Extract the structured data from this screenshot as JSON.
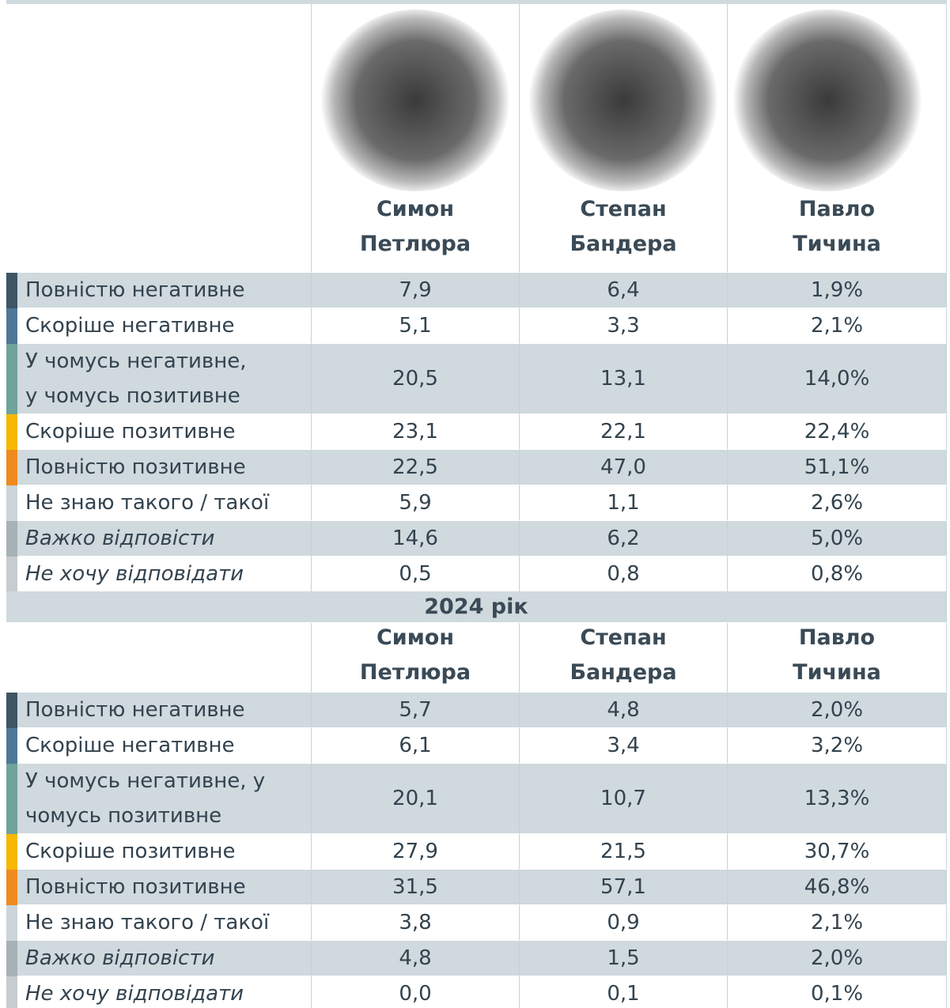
{
  "sections": [
    {
      "columns": [
        [
          "Симон",
          "Петлюра"
        ],
        [
          "Степан",
          "Бандера"
        ],
        [
          "Павло",
          "Тичина"
        ]
      ],
      "rows": [
        {
          "label": [
            "Повністю негативне"
          ],
          "color": "#3d5565",
          "values": [
            "7,9",
            "6,4",
            "1,9%"
          ]
        },
        {
          "label": [
            "Скоріше негативне"
          ],
          "color": "#4e7898",
          "values": [
            "5,1",
            "3,3",
            "2,1%"
          ]
        },
        {
          "label": [
            "У чомусь негативне,",
            "у чомусь позитивне"
          ],
          "color": "#6fa39c",
          "values": [
            "20,5",
            "13,1",
            "14,0%"
          ]
        },
        {
          "label": [
            "Скоріше позитивне"
          ],
          "color": "#f6b800",
          "values": [
            "23,1",
            "22,1",
            "22,4%"
          ]
        },
        {
          "label": [
            "Повністю позитивне"
          ],
          "color": "#f08a1c",
          "values": [
            "22,5",
            "47,0",
            "51,1%"
          ]
        },
        {
          "label": [
            "Не знаю такого / такої"
          ],
          "color": "#cbd5db",
          "values": [
            "5,9",
            "1,1",
            "2,6%"
          ]
        },
        {
          "label": [
            "Важко відповісти"
          ],
          "color": "#a7b2b6",
          "italic": true,
          "values": [
            "14,6",
            "6,2",
            "5,0%"
          ]
        },
        {
          "label": [
            "Не хочу відповідати"
          ],
          "color": "#c6ccd0",
          "italic": true,
          "values": [
            "0,5",
            "0,8",
            "0,8%"
          ]
        }
      ]
    },
    {
      "title": "2024 рік",
      "columns": [
        [
          "Симон",
          "Петлюра"
        ],
        [
          "Степан",
          "Бандера"
        ],
        [
          "Павло",
          "Тичина"
        ]
      ],
      "rows": [
        {
          "label": [
            "Повністю негативне"
          ],
          "color": "#3d5565",
          "values": [
            "5,7",
            "4,8",
            "2,0%"
          ]
        },
        {
          "label": [
            "Скоріше негативне"
          ],
          "color": "#4e7898",
          "values": [
            "6,1",
            "3,4",
            "3,2%"
          ]
        },
        {
          "label": [
            "У чомусь негативне, у",
            "чомусь позитивне"
          ],
          "color": "#6fa39c",
          "values": [
            "20,1",
            "10,7",
            "13,3%"
          ]
        },
        {
          "label": [
            "Скоріше позитивне"
          ],
          "color": "#f6b800",
          "values": [
            "27,9",
            "21,5",
            "30,7%"
          ]
        },
        {
          "label": [
            "Повністю позитивне"
          ],
          "color": "#f08a1c",
          "values": [
            "31,5",
            "57,1",
            "46,8%"
          ]
        },
        {
          "label": [
            "Не знаю такого / такої"
          ],
          "color": "#cbd5db",
          "values": [
            "3,8",
            "0,9",
            "2,1%"
          ]
        },
        {
          "label": [
            "Важко відповісти"
          ],
          "color": "#a7b2b6",
          "italic": true,
          "values": [
            "4,8",
            "1,5",
            "2,0%"
          ]
        },
        {
          "label": [
            "Не хочу відповідати"
          ],
          "color": "#c6ccd0",
          "italic": true,
          "values": [
            "0,0",
            "0,1",
            "0,1%"
          ]
        }
      ]
    }
  ]
}
